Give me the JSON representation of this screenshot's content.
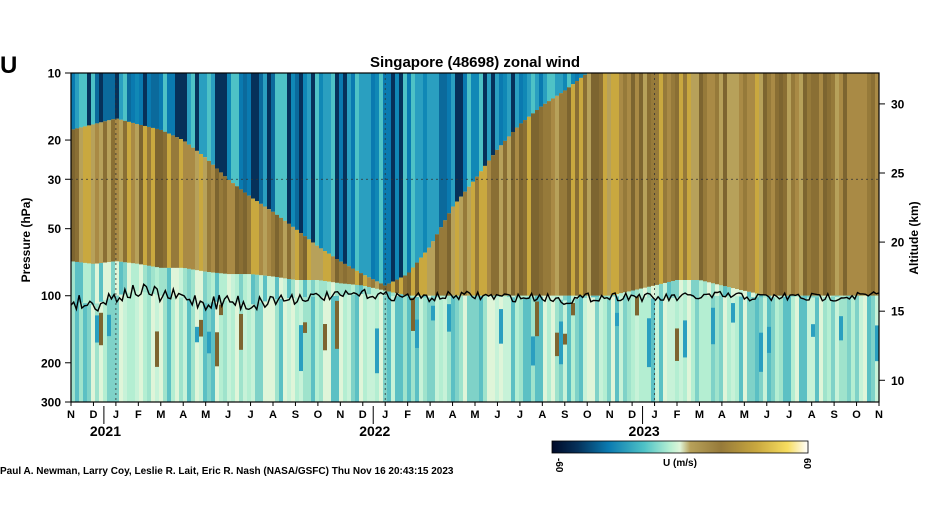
{
  "panel_label": "U",
  "footer": "Paul A. Newman, Larry Coy, Leslie R. Lait, Eric R. Nash (NASA/GSFC) Thu Nov 16 20:43:15 2023",
  "colors": {
    "easterly_strong": "#000a28",
    "easterly": "#0a7ab0",
    "near_zero": "#b4eed2",
    "westerly": "#967a3a",
    "westerly_strong": "#f7dd5f",
    "max": "#ffffff",
    "tropopause_line": "#000000"
  },
  "chart_data": {
    "type": "heatmap",
    "title": "Singapore (48698) zonal wind",
    "ylabel": "Pressure (hPa)",
    "y2label": "Altitude (km)",
    "ylim": [
      300,
      10
    ],
    "yscale": "log",
    "y_ticks": [
      10,
      20,
      30,
      50,
      100,
      200,
      300
    ],
    "y2_ticks": [
      30,
      25,
      20,
      15,
      10
    ],
    "x_month_labels": [
      "N",
      "D",
      "J",
      "F",
      "M",
      "A",
      "M",
      "J",
      "J",
      "A",
      "S",
      "O",
      "N",
      "D",
      "J",
      "F",
      "M",
      "A",
      "M",
      "J",
      "J",
      "A",
      "S",
      "O",
      "N",
      "D",
      "J",
      "F",
      "M",
      "A",
      "M",
      "J",
      "J",
      "A",
      "S",
      "O",
      "N"
    ],
    "x_year_labels": [
      {
        "label": "2021",
        "month_index": 7.5
      },
      {
        "label": "2022",
        "month_index": 19.5
      },
      {
        "label": "2023",
        "month_index": 31.5
      }
    ],
    "xlim": [
      "2020-11",
      "2023-11"
    ],
    "colorbar": {
      "label": "U (m/s)",
      "min_label": "-60",
      "max_label": "60",
      "range": [
        -60,
        60
      ]
    },
    "qbo_westerly_top_hPa": [
      18,
      17,
      16,
      17,
      18,
      20,
      24,
      30,
      36,
      42,
      50,
      60,
      70,
      80,
      90,
      80,
      60,
      40,
      30,
      22,
      17,
      14,
      12,
      10,
      10,
      10,
      10,
      10,
      10,
      10,
      10,
      10,
      10,
      10,
      10,
      10,
      10
    ],
    "qbo_westerly_bottom_hPa": [
      70,
      72,
      70,
      72,
      75,
      75,
      78,
      80,
      80,
      82,
      85,
      85,
      88,
      90,
      95,
      100,
      100,
      100,
      100,
      100,
      100,
      100,
      100,
      100,
      100,
      95,
      90,
      85,
      85,
      90,
      95,
      100,
      100,
      100,
      100,
      100,
      100
    ],
    "qbo_westerly_top2_hPa": [
      null,
      null,
      null,
      null,
      null,
      null,
      null,
      null,
      null,
      null,
      null,
      null,
      null,
      null,
      null,
      null,
      null,
      null,
      null,
      null,
      null,
      null,
      null,
      null,
      null,
      10,
      10,
      12,
      14,
      16,
      18,
      22,
      26,
      32,
      40,
      46,
      50
    ],
    "tropopause_hPa": [
      105,
      110,
      100,
      95,
      100,
      102,
      108,
      105,
      110,
      104,
      102,
      101,
      100,
      98,
      100,
      101,
      102,
      100,
      100,
      101,
      102,
      101,
      105,
      102,
      101,
      100,
      103,
      102,
      101,
      100,
      101,
      102,
      101,
      102,
      101,
      100,
      100
    ]
  }
}
